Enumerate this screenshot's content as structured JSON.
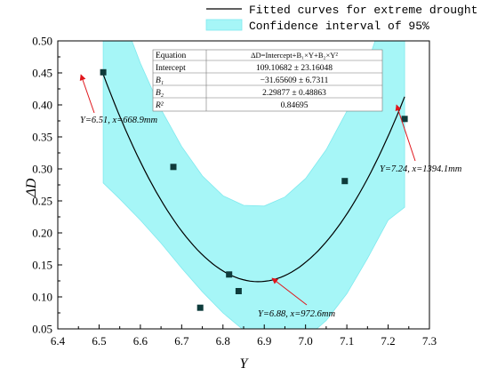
{
  "chart_data": {
    "type": "scatter",
    "xlabel": "Y",
    "ylabel": "ΔD",
    "xlim": [
      6.4,
      7.3
    ],
    "ylim": [
      0.05,
      0.5
    ],
    "xticks": [
      "6.4",
      "6.5",
      "6.6",
      "6.7",
      "6.8",
      "6.9",
      "7.0",
      "7.1",
      "7.2",
      "7.3"
    ],
    "yticks": [
      "0.05",
      "0.10",
      "0.15",
      "0.20",
      "0.25",
      "0.30",
      "0.35",
      "0.40",
      "0.45",
      "0.50"
    ],
    "points": [
      {
        "x": 6.51,
        "y": 0.451
      },
      {
        "x": 6.68,
        "y": 0.303
      },
      {
        "x": 6.745,
        "y": 0.083
      },
      {
        "x": 6.815,
        "y": 0.135
      },
      {
        "x": 6.838,
        "y": 0.109
      },
      {
        "x": 7.095,
        "y": 0.281
      },
      {
        "x": 7.24,
        "y": 0.378
      }
    ],
    "fit": {
      "intercept": 109.10682,
      "b1": -31.65609,
      "b2": 2.29877,
      "x_range": [
        6.51,
        7.24
      ]
    },
    "confidence_band": {
      "x": [
        6.51,
        6.55,
        6.6,
        6.65,
        6.7,
        6.75,
        6.8,
        6.85,
        6.9,
        6.95,
        7.0,
        7.05,
        7.1,
        7.15,
        7.2,
        7.24
      ],
      "upper": [
        0.62,
        0.55,
        0.465,
        0.393,
        0.335,
        0.289,
        0.258,
        0.243,
        0.242,
        0.256,
        0.285,
        0.33,
        0.39,
        0.465,
        0.56,
        0.64
      ],
      "lower": [
        0.278,
        0.253,
        0.22,
        0.184,
        0.145,
        0.108,
        0.075,
        0.048,
        0.03,
        0.025,
        0.035,
        0.063,
        0.105,
        0.16,
        0.22,
        0.24
      ]
    },
    "legend": [
      {
        "label": "Fitted curves for extreme drought",
        "color": "#000000"
      },
      {
        "label": "Confidence interval of 95%",
        "color": "#a6f6f7"
      }
    ],
    "legend_position": "top-right",
    "table": {
      "rows": [
        {
          "name": "Equation",
          "value": "ΔD=Intercept+B₁×Y+B₂×Y²"
        },
        {
          "name": "Intercept",
          "value": "109.10682 ± 23.16048"
        },
        {
          "name": "B₁",
          "value": "−31.65609 ± 6.7311"
        },
        {
          "name": "B₂",
          "value": "2.29877 ± 0.48863"
        },
        {
          "name": "R²",
          "value": "0.84695"
        }
      ]
    },
    "annotations": [
      {
        "text": "Y=6.51, x=668.9mm",
        "target": {
          "x": 6.51,
          "y": 0.451
        }
      },
      {
        "text": "Y=6.88, x=972.6mm",
        "target": {
          "x": 6.88,
          "y": 0.125
        }
      },
      {
        "text": "Y=7.24, x=1394.1mm",
        "target": {
          "x": 7.24,
          "y": 0.405
        }
      }
    ],
    "colors": {
      "band": "#a6f6f7",
      "band_edge": "#7fe9ee",
      "curve": "#000000",
      "point": "#0e3b3b",
      "arrow": "#e0151b"
    }
  }
}
